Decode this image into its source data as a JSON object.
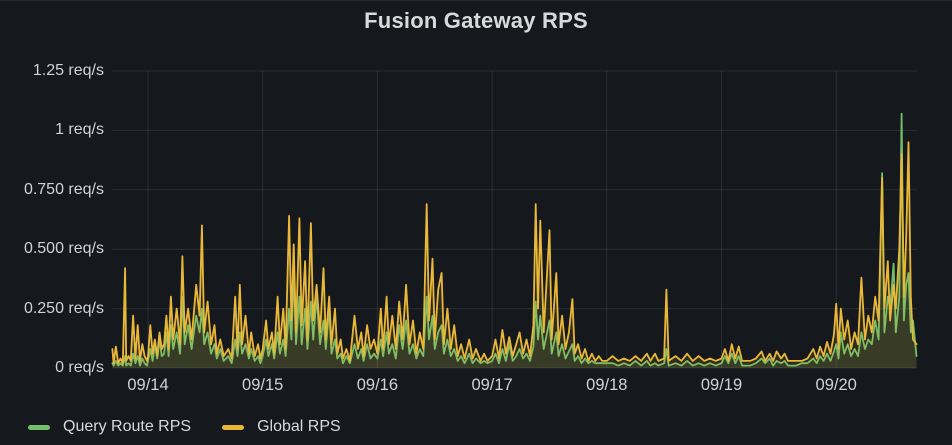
{
  "panel": {
    "title": "Fusion Gateway RPS",
    "background": "#15181c",
    "text_color": "#d8d9da",
    "grid_color": "rgba(205,211,220,0.12)"
  },
  "legend": {
    "position": "bottom-left",
    "items": [
      {
        "label": "Query Route RPS",
        "color": "#73bf69"
      },
      {
        "label": "Global RPS",
        "color": "#eab839"
      }
    ]
  },
  "chart_data": {
    "type": "line",
    "title": "Fusion Gateway RPS",
    "xlabel": "",
    "ylabel": "req/s",
    "ylim": [
      0,
      1.25
    ],
    "grid": true,
    "legend_position": "bottom-left",
    "y_ticks": [
      {
        "value": 0,
        "label": "0 req/s"
      },
      {
        "value": 0.25,
        "label": "0.250 req/s"
      },
      {
        "value": 0.5,
        "label": "0.500 req/s"
      },
      {
        "value": 0.75,
        "label": "0.750 req/s"
      },
      {
        "value": 1,
        "label": "1 req/s"
      },
      {
        "value": 1.25,
        "label": "1.25 req/s"
      }
    ],
    "x_ticks": [
      {
        "day": 0,
        "label": "09/14"
      },
      {
        "day": 1,
        "label": "09/15"
      },
      {
        "day": 2,
        "label": "09/16"
      },
      {
        "day": 3,
        "label": "09/17"
      },
      {
        "day": 4,
        "label": "09/18"
      },
      {
        "day": 5,
        "label": "09/19"
      },
      {
        "day": 6,
        "label": "09/20"
      }
    ],
    "x_axis": {
      "unit": "days relative to 09/14 00:00",
      "range": [
        -0.31,
        6.7
      ]
    },
    "x_days": [
      -0.31,
      -0.3,
      -0.28,
      -0.26,
      -0.24,
      -0.22,
      -0.2,
      -0.19,
      -0.17,
      -0.15,
      -0.13,
      -0.11,
      -0.09,
      -0.07,
      -0.05,
      -0.03,
      -0.01,
      0.0,
      0.02,
      0.04,
      0.06,
      0.08,
      0.1,
      0.12,
      0.14,
      0.16,
      0.18,
      0.2,
      0.22,
      0.25,
      0.28,
      0.3,
      0.32,
      0.35,
      0.38,
      0.42,
      0.45,
      0.47,
      0.49,
      0.52,
      0.55,
      0.58,
      0.6,
      0.63,
      0.66,
      0.7,
      0.73,
      0.76,
      0.78,
      0.8,
      0.82,
      0.85,
      0.88,
      0.9,
      0.93,
      0.96,
      0.98,
      1.0,
      1.03,
      1.05,
      1.08,
      1.1,
      1.13,
      1.15,
      1.18,
      1.2,
      1.23,
      1.25,
      1.27,
      1.29,
      1.32,
      1.34,
      1.37,
      1.39,
      1.42,
      1.44,
      1.47,
      1.5,
      1.53,
      1.55,
      1.58,
      1.6,
      1.63,
      1.65,
      1.68,
      1.7,
      1.73,
      1.76,
      1.8,
      1.83,
      1.86,
      1.88,
      1.91,
      1.94,
      1.97,
      2.0,
      2.03,
      2.05,
      2.08,
      2.1,
      2.13,
      2.16,
      2.19,
      2.22,
      2.25,
      2.28,
      2.31,
      2.34,
      2.37,
      2.4,
      2.43,
      2.45,
      2.48,
      2.5,
      2.53,
      2.56,
      2.58,
      2.61,
      2.64,
      2.67,
      2.7,
      2.73,
      2.76,
      2.8,
      2.83,
      2.86,
      2.9,
      2.93,
      2.96,
      3.0,
      3.03,
      3.06,
      3.09,
      3.12,
      3.15,
      3.18,
      3.21,
      3.24,
      3.27,
      3.3,
      3.33,
      3.36,
      3.38,
      3.4,
      3.42,
      3.45,
      3.5,
      3.52,
      3.56,
      3.58,
      3.61,
      3.64,
      3.67,
      3.7,
      3.72,
      3.75,
      3.78,
      3.81,
      3.84,
      3.87,
      3.9,
      3.93,
      3.96,
      4.0,
      4.05,
      4.1,
      4.15,
      4.2,
      4.25,
      4.3,
      4.35,
      4.38,
      4.42,
      4.45,
      4.5,
      4.52,
      4.54,
      4.6,
      4.65,
      4.7,
      4.75,
      4.8,
      4.85,
      4.9,
      4.95,
      5.0,
      5.03,
      5.06,
      5.09,
      5.12,
      5.15,
      5.18,
      5.25,
      5.3,
      5.35,
      5.38,
      5.42,
      5.45,
      5.48,
      5.52,
      5.55,
      5.58,
      5.65,
      5.7,
      5.75,
      5.8,
      5.83,
      5.86,
      5.89,
      5.92,
      5.95,
      5.98,
      6.0,
      6.02,
      6.04,
      6.07,
      6.1,
      6.13,
      6.16,
      6.19,
      6.22,
      6.25,
      6.28,
      6.31,
      6.34,
      6.37,
      6.4,
      6.42,
      6.45,
      6.47,
      6.5,
      6.52,
      6.55,
      6.57,
      6.59,
      6.61,
      6.63,
      6.65,
      6.67,
      6.7
    ],
    "series": [
      {
        "name": "Query Route RPS",
        "color": "#73bf69",
        "fill_opacity": 0.12,
        "values": [
          0.02,
          0.01,
          0.03,
          0.01,
          0.02,
          0.01,
          0.05,
          0.01,
          0.02,
          0.01,
          0.06,
          0.02,
          0.05,
          0.01,
          0.04,
          0.02,
          0.01,
          0.03,
          0.08,
          0.03,
          0.1,
          0.04,
          0.12,
          0.05,
          0.06,
          0.15,
          0.05,
          0.18,
          0.08,
          0.15,
          0.06,
          0.3,
          0.1,
          0.18,
          0.08,
          0.22,
          0.15,
          0.25,
          0.1,
          0.15,
          0.06,
          0.1,
          0.04,
          0.08,
          0.03,
          0.05,
          0.02,
          0.12,
          0.05,
          0.15,
          0.06,
          0.1,
          0.04,
          0.08,
          0.03,
          0.05,
          0.02,
          0.05,
          0.12,
          0.05,
          0.1,
          0.04,
          0.15,
          0.06,
          0.12,
          0.05,
          0.25,
          0.12,
          0.4,
          0.1,
          0.3,
          0.1,
          0.25,
          0.08,
          0.28,
          0.12,
          0.3,
          0.1,
          0.2,
          0.08,
          0.25,
          0.06,
          0.12,
          0.04,
          0.06,
          0.02,
          0.05,
          0.02,
          0.1,
          0.04,
          0.08,
          0.03,
          0.1,
          0.04,
          0.06,
          0.04,
          0.12,
          0.05,
          0.15,
          0.06,
          0.1,
          0.04,
          0.18,
          0.08,
          0.2,
          0.06,
          0.1,
          0.04,
          0.08,
          0.05,
          0.3,
          0.12,
          0.22,
          0.08,
          0.15,
          0.18,
          0.06,
          0.12,
          0.05,
          0.08,
          0.03,
          0.05,
          0.02,
          0.06,
          0.02,
          0.04,
          0.02,
          0.03,
          0.02,
          0.03,
          0.06,
          0.02,
          0.08,
          0.03,
          0.1,
          0.03,
          0.05,
          0.08,
          0.04,
          0.06,
          0.03,
          0.09,
          0.28,
          0.12,
          0.22,
          0.08,
          0.2,
          0.06,
          0.15,
          0.05,
          0.1,
          0.04,
          0.07,
          0.1,
          0.03,
          0.05,
          0.02,
          0.04,
          0.02,
          0.03,
          0.02,
          0.02,
          0.02,
          0.02,
          0.02,
          0.01,
          0.02,
          0.01,
          0.03,
          0.01,
          0.03,
          0.01,
          0.02,
          0.01,
          0.02,
          0.08,
          0.01,
          0.02,
          0.01,
          0.03,
          0.01,
          0.02,
          0.01,
          0.02,
          0.01,
          0.02,
          0.05,
          0.02,
          0.06,
          0.02,
          0.05,
          0.01,
          0.01,
          0.02,
          0.04,
          0.02,
          0.04,
          0.01,
          0.03,
          0.02,
          0.03,
          0.01,
          0.01,
          0.02,
          0.02,
          0.04,
          0.02,
          0.05,
          0.03,
          0.06,
          0.03,
          0.07,
          0.1,
          0.04,
          0.15,
          0.06,
          0.1,
          0.05,
          0.08,
          0.05,
          0.15,
          0.08,
          0.12,
          0.1,
          0.2,
          0.12,
          0.82,
          0.15,
          0.3,
          0.25,
          0.44,
          0.15,
          0.3,
          1.07,
          0.2,
          0.35,
          0.4,
          0.15,
          0.2,
          0.05
        ]
      },
      {
        "name": "Global RPS",
        "color": "#eab839",
        "fill_opacity": 0.12,
        "values": [
          0.08,
          0.02,
          0.09,
          0.02,
          0.04,
          0.02,
          0.42,
          0.03,
          0.05,
          0.03,
          0.22,
          0.04,
          0.18,
          0.03,
          0.1,
          0.05,
          0.03,
          0.05,
          0.18,
          0.06,
          0.12,
          0.05,
          0.15,
          0.08,
          0.1,
          0.22,
          0.08,
          0.3,
          0.12,
          0.25,
          0.1,
          0.47,
          0.15,
          0.25,
          0.12,
          0.35,
          0.22,
          0.6,
          0.15,
          0.28,
          0.1,
          0.18,
          0.06,
          0.12,
          0.05,
          0.08,
          0.04,
          0.3,
          0.08,
          0.35,
          0.1,
          0.22,
          0.06,
          0.15,
          0.05,
          0.1,
          0.04,
          0.08,
          0.2,
          0.08,
          0.15,
          0.06,
          0.3,
          0.1,
          0.25,
          0.08,
          0.64,
          0.2,
          0.52,
          0.15,
          0.63,
          0.18,
          0.45,
          0.12,
          0.61,
          0.2,
          0.35,
          0.15,
          0.42,
          0.12,
          0.3,
          0.1,
          0.25,
          0.06,
          0.12,
          0.04,
          0.08,
          0.03,
          0.22,
          0.08,
          0.15,
          0.05,
          0.18,
          0.08,
          0.12,
          0.06,
          0.25,
          0.08,
          0.3,
          0.1,
          0.22,
          0.08,
          0.28,
          0.12,
          0.35,
          0.1,
          0.2,
          0.06,
          0.15,
          0.08,
          0.69,
          0.2,
          0.46,
          0.12,
          0.33,
          0.4,
          0.1,
          0.25,
          0.08,
          0.18,
          0.05,
          0.1,
          0.04,
          0.12,
          0.04,
          0.08,
          0.03,
          0.06,
          0.03,
          0.05,
          0.12,
          0.04,
          0.16,
          0.06,
          0.13,
          0.05,
          0.1,
          0.15,
          0.06,
          0.12,
          0.05,
          0.18,
          0.69,
          0.25,
          0.62,
          0.15,
          0.58,
          0.12,
          0.4,
          0.1,
          0.22,
          0.08,
          0.15,
          0.29,
          0.06,
          0.1,
          0.04,
          0.08,
          0.03,
          0.06,
          0.03,
          0.05,
          0.03,
          0.03,
          0.05,
          0.03,
          0.04,
          0.03,
          0.05,
          0.03,
          0.06,
          0.03,
          0.06,
          0.03,
          0.04,
          0.33,
          0.03,
          0.05,
          0.03,
          0.06,
          0.03,
          0.05,
          0.03,
          0.04,
          0.03,
          0.04,
          0.08,
          0.03,
          0.1,
          0.04,
          0.09,
          0.03,
          0.03,
          0.04,
          0.07,
          0.03,
          0.06,
          0.03,
          0.07,
          0.04,
          0.06,
          0.03,
          0.03,
          0.03,
          0.04,
          0.08,
          0.04,
          0.09,
          0.05,
          0.11,
          0.06,
          0.14,
          0.27,
          0.08,
          0.25,
          0.12,
          0.2,
          0.08,
          0.15,
          0.1,
          0.38,
          0.12,
          0.22,
          0.15,
          0.3,
          0.2,
          0.8,
          0.25,
          0.45,
          0.2,
          0.35,
          0.25,
          0.5,
          0.9,
          0.3,
          0.55,
          0.95,
          0.3,
          0.12,
          0.1
        ]
      }
    ]
  }
}
